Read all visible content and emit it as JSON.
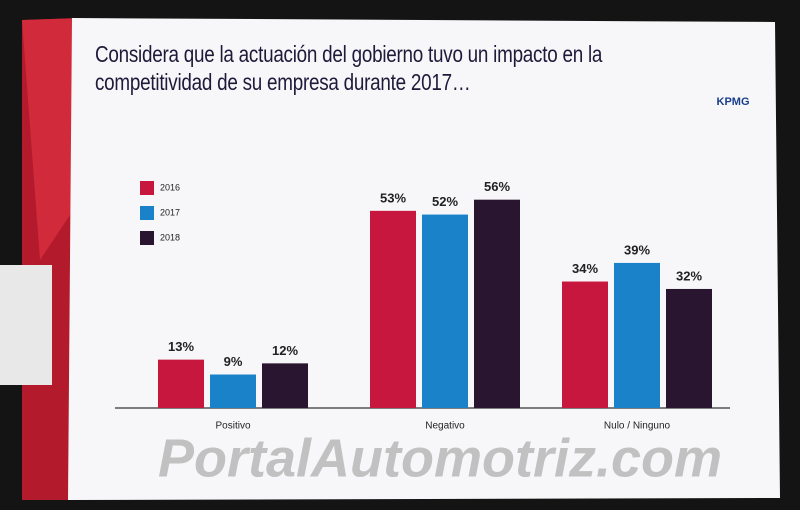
{
  "chart_data": {
    "type": "bar",
    "title": "Considera que la actuación del gobierno tuvo un impacto en la competitividad de su empresa durante 2017…",
    "logo": "KPMG",
    "watermark": "PortalAutomotriz.com",
    "categories": [
      "Positivo",
      "Negativo",
      "Nulo / Ninguno"
    ],
    "series": [
      {
        "name": "2016",
        "color": "#c8173e",
        "values": [
          13,
          53,
          34
        ],
        "value_labels": [
          "13%",
          "53%",
          "34%"
        ]
      },
      {
        "name": "2017",
        "color": "#1a82c8",
        "values": [
          9,
          52,
          39
        ],
        "value_labels": [
          "9%",
          "52%",
          "39%"
        ]
      },
      {
        "name": "2018",
        "color": "#2a1530",
        "values": [
          12,
          56,
          32
        ],
        "value_labels": [
          "12%",
          "56%",
          "32%"
        ]
      }
    ],
    "legend": "upper left"
  }
}
